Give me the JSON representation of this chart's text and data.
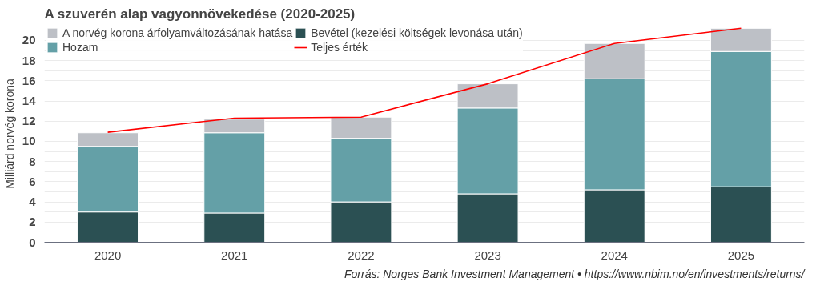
{
  "chart_data": {
    "type": "bar",
    "stacked": true,
    "title": "A szuverén alap vagyonnövekedése (2020-2025)",
    "ylabel": "Milliárd norvég korona",
    "categories": [
      "2020",
      "2021",
      "2022",
      "2023",
      "2024",
      "2025"
    ],
    "series": [
      {
        "name": "Bevétel (kezelési költségek levonása után)",
        "color": "#2b5053",
        "values": [
          3.0,
          2.9,
          4.0,
          4.8,
          5.2,
          5.5
        ]
      },
      {
        "name": "Hozam",
        "color": "#64a0a7",
        "values": [
          6.5,
          7.95,
          6.3,
          8.5,
          11.0,
          13.4
        ]
      },
      {
        "name": "A norvég korona árfolyamváltozásának hatása",
        "color": "#bdc0c6",
        "values": [
          1.35,
          1.35,
          2.1,
          2.4,
          3.5,
          2.3
        ]
      },
      {
        "name": "Teljes érték",
        "type": "line",
        "color": "#ff0000",
        "values": [
          10.9,
          12.3,
          12.4,
          15.7,
          19.7,
          21.2
        ]
      }
    ],
    "ylim": [
      0,
      21.5
    ],
    "yticks": [
      0,
      {
        "value": 1,
        "label": null
      },
      2,
      {
        "value": 3,
        "label": null
      },
      4,
      {
        "value": 5,
        "label": null
      },
      6,
      {
        "value": 7,
        "label": null
      },
      8,
      {
        "value": 9,
        "label": null
      },
      10,
      {
        "value": 11,
        "label": null
      },
      12,
      {
        "value": 13,
        "label": null
      },
      14,
      {
        "value": 15,
        "label": null
      },
      16,
      {
        "value": 17,
        "label": null
      },
      18,
      {
        "value": 19,
        "label": null
      },
      20,
      {
        "value": 21,
        "label": null
      }
    ],
    "grid": "y",
    "legend": "top left",
    "marker": "none",
    "annotations": [
      "Forrás: Norges Bank Investment Management • https://www.nbim.no/en/investments/returns/"
    ]
  }
}
